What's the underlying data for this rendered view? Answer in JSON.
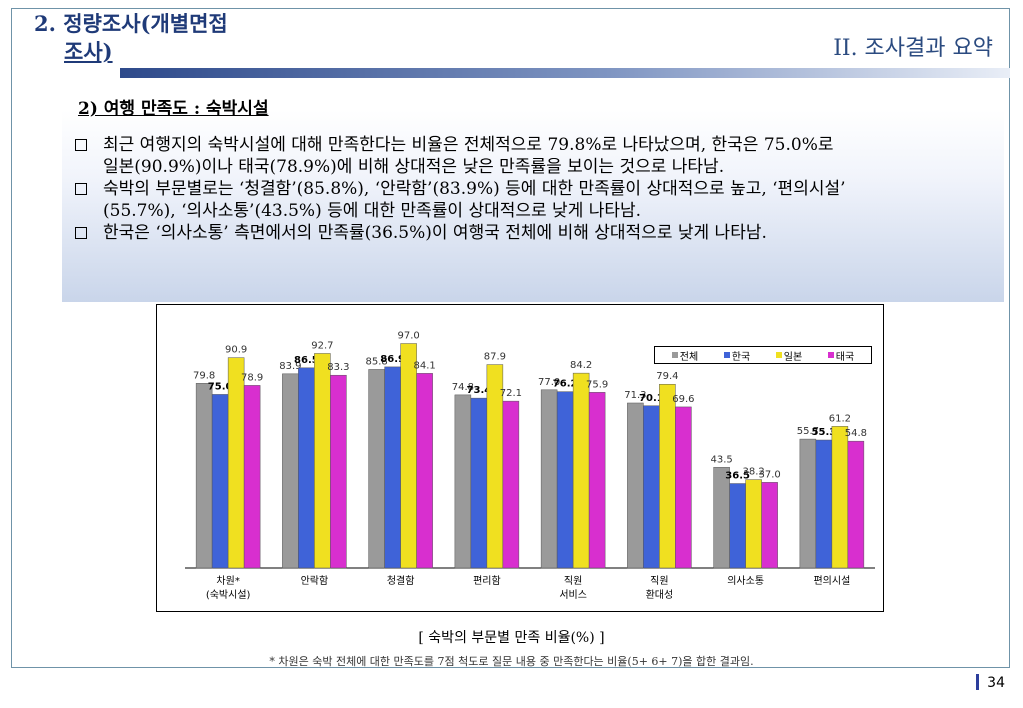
{
  "header": {
    "title_line1": "2. 정량조사(개별면접",
    "title_line2": "조사)",
    "section": "II. 조사결과 요약"
  },
  "subheading": "2) 여행 만족도 : 숙박시설",
  "bullets": [
    {
      "lines": [
        "최근 여행지의 숙박시설에 대해 만족한다는 비율은 전체적으로 79.8%로 나타났으며, 한국은 75.0%로",
        "일본(90.9%)이나 태국(78.9%)에 비해 상대적은 낮은 만족률을 보이는 것으로 나타남."
      ]
    },
    {
      "lines": [
        "숙박의 부문별로는 ‘청결함’(85.8%), ‘안락함’(83.9%) 등에 대한 만족률이 상대적으로 높고, ‘편의시설’",
        "(55.7%), ‘의사소통’(43.5%) 등에 대한 만족률이 상대적으로 낮게 나타남."
      ]
    },
    {
      "lines": [
        "한국은 ‘의사소통’ 측면에서의 만족률(36.5%)이 여행국 전체에 비해 상대적으로 낮게 나타남."
      ]
    }
  ],
  "chart_data": {
    "type": "bar",
    "categories": [
      "차원*\n(숙박시설)",
      "안락함",
      "청결함",
      "편리함",
      "직원\n서비스",
      "직원\n환대성",
      "의사소통",
      "편의시설"
    ],
    "series": [
      {
        "name": "전체",
        "color": "#9a9a9a",
        "values": [
          79.8,
          83.9,
          85.8,
          74.8,
          77.0,
          71.3,
          43.5,
          55.7
        ]
      },
      {
        "name": "한국",
        "color": "#3f63d8",
        "values": [
          75.0,
          86.5,
          86.9,
          73.4,
          76.2,
          70.1,
          36.5,
          55.3
        ]
      },
      {
        "name": "일본",
        "color": "#f0e020",
        "values": [
          90.9,
          92.7,
          97.0,
          87.9,
          84.2,
          79.4,
          38.2,
          61.2
        ]
      },
      {
        "name": "태국",
        "color": "#d82fcf",
        "values": [
          78.9,
          83.3,
          84.1,
          72.1,
          75.9,
          69.6,
          37.0,
          54.8
        ]
      }
    ],
    "ylim": [
      0,
      105
    ],
    "legend": "top-right",
    "grid": false
  },
  "caption": "[ 숙박의 부문별 만족 비율(%) ]",
  "note": "* 차원은 숙박 전체에 대한 만족도를 7점 척도로 질문 내용 중 만족한다는 비율(5+ 6+ 7)을 합한 결과임.",
  "page_number": "34"
}
